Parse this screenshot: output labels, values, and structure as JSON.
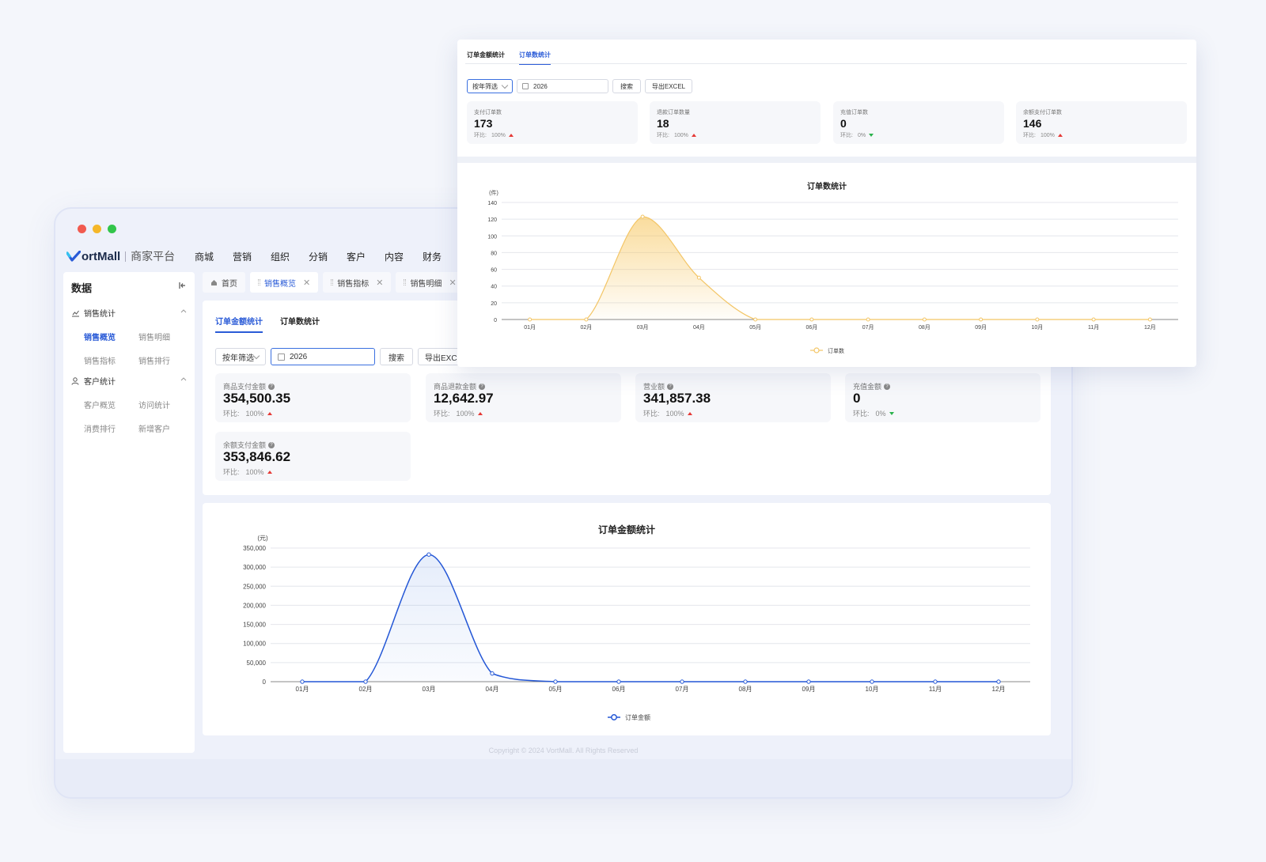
{
  "app": {
    "brand": "VortMall",
    "brand_logo_text": "ortMall",
    "brand_sub": "商家平台",
    "nav": [
      "商城",
      "营销",
      "组织",
      "分销",
      "客户",
      "内容",
      "财务"
    ]
  },
  "sidebar": {
    "title": "数据",
    "groups": [
      {
        "label": "销售统计",
        "items": [
          "销售概览",
          "销售明细",
          "销售指标",
          "销售排行"
        ]
      },
      {
        "label": "客户统计",
        "items": [
          "客户概览",
          "访问统计",
          "消费排行",
          "新增客户"
        ]
      }
    ]
  },
  "tabs": [
    "首页",
    "销售概览",
    "销售指标",
    "销售明细"
  ],
  "back_panel": {
    "subtabs": [
      "订单金额统计",
      "订单数统计"
    ],
    "filter_mode": "按年筛选",
    "year": "2026",
    "search": "搜索",
    "export": "导出EXCEL",
    "compare_label": "环比:",
    "stats": [
      {
        "label": "商品支付金额",
        "value": "354,500.35",
        "pct": "100%",
        "trend": "up"
      },
      {
        "label": "商品退款金额",
        "value": "12,642.97",
        "pct": "100%",
        "trend": "up"
      },
      {
        "label": "营业额",
        "value": "341,857.38",
        "pct": "100%",
        "trend": "up"
      },
      {
        "label": "充值金额",
        "value": "0",
        "pct": "0%",
        "trend": "down"
      },
      {
        "label": "余额支付金额",
        "value": "353,846.62",
        "pct": "100%",
        "trend": "up"
      }
    ],
    "footer": "Copyright © 2024 VortMall. All Rights Reserved"
  },
  "front_panel": {
    "subtabs": [
      "订单金额统计",
      "订单数统计"
    ],
    "filter_mode": "按年筛选",
    "year": "2026",
    "search": "搜索",
    "export": "导出EXCEL",
    "compare_label": "环比:",
    "stats": [
      {
        "label": "支付订单数",
        "value": "173",
        "pct": "100%",
        "trend": "up"
      },
      {
        "label": "退款订单数量",
        "value": "18",
        "pct": "100%",
        "trend": "up"
      },
      {
        "label": "充值订单数",
        "value": "0",
        "pct": "0%",
        "trend": "down"
      },
      {
        "label": "余额支付订单数",
        "value": "146",
        "pct": "100%",
        "trend": "up"
      }
    ]
  },
  "colors": {
    "accent": "#2a5bd7",
    "amount_line": "#2457d6",
    "count_line": "#f3c565",
    "up": "#e53935",
    "down": "#2bb24c"
  },
  "chart_data": [
    {
      "type": "area",
      "title": "订单金额统计",
      "unit": "(元)",
      "categories": [
        "01月",
        "02月",
        "03月",
        "04月",
        "05月",
        "06月",
        "07月",
        "08月",
        "09月",
        "10月",
        "11月",
        "12月"
      ],
      "series": [
        {
          "name": "订单金额",
          "values": [
            0,
            0,
            333000,
            21500,
            0,
            0,
            0,
            0,
            0,
            0,
            0,
            0
          ]
        }
      ],
      "yticks": [
        "0",
        "50,000",
        "100,000",
        "150,000",
        "200,000",
        "250,000",
        "300,000",
        "350,000"
      ],
      "ylim": [
        0,
        350000
      ],
      "grid": true,
      "legend": "bottom"
    },
    {
      "type": "area",
      "title": "订单数统计",
      "unit": "(件)",
      "categories": [
        "01月",
        "02月",
        "03月",
        "04月",
        "05月",
        "06月",
        "07月",
        "08月",
        "09月",
        "10月",
        "11月",
        "12月"
      ],
      "series": [
        {
          "name": "订单数",
          "values": [
            0,
            0,
            123,
            50,
            0,
            0,
            0,
            0,
            0,
            0,
            0,
            0
          ]
        }
      ],
      "yticks": [
        "0",
        "20",
        "40",
        "60",
        "80",
        "100",
        "120",
        "140"
      ],
      "ylim": [
        0,
        140
      ],
      "grid": true,
      "legend": "bottom"
    }
  ]
}
